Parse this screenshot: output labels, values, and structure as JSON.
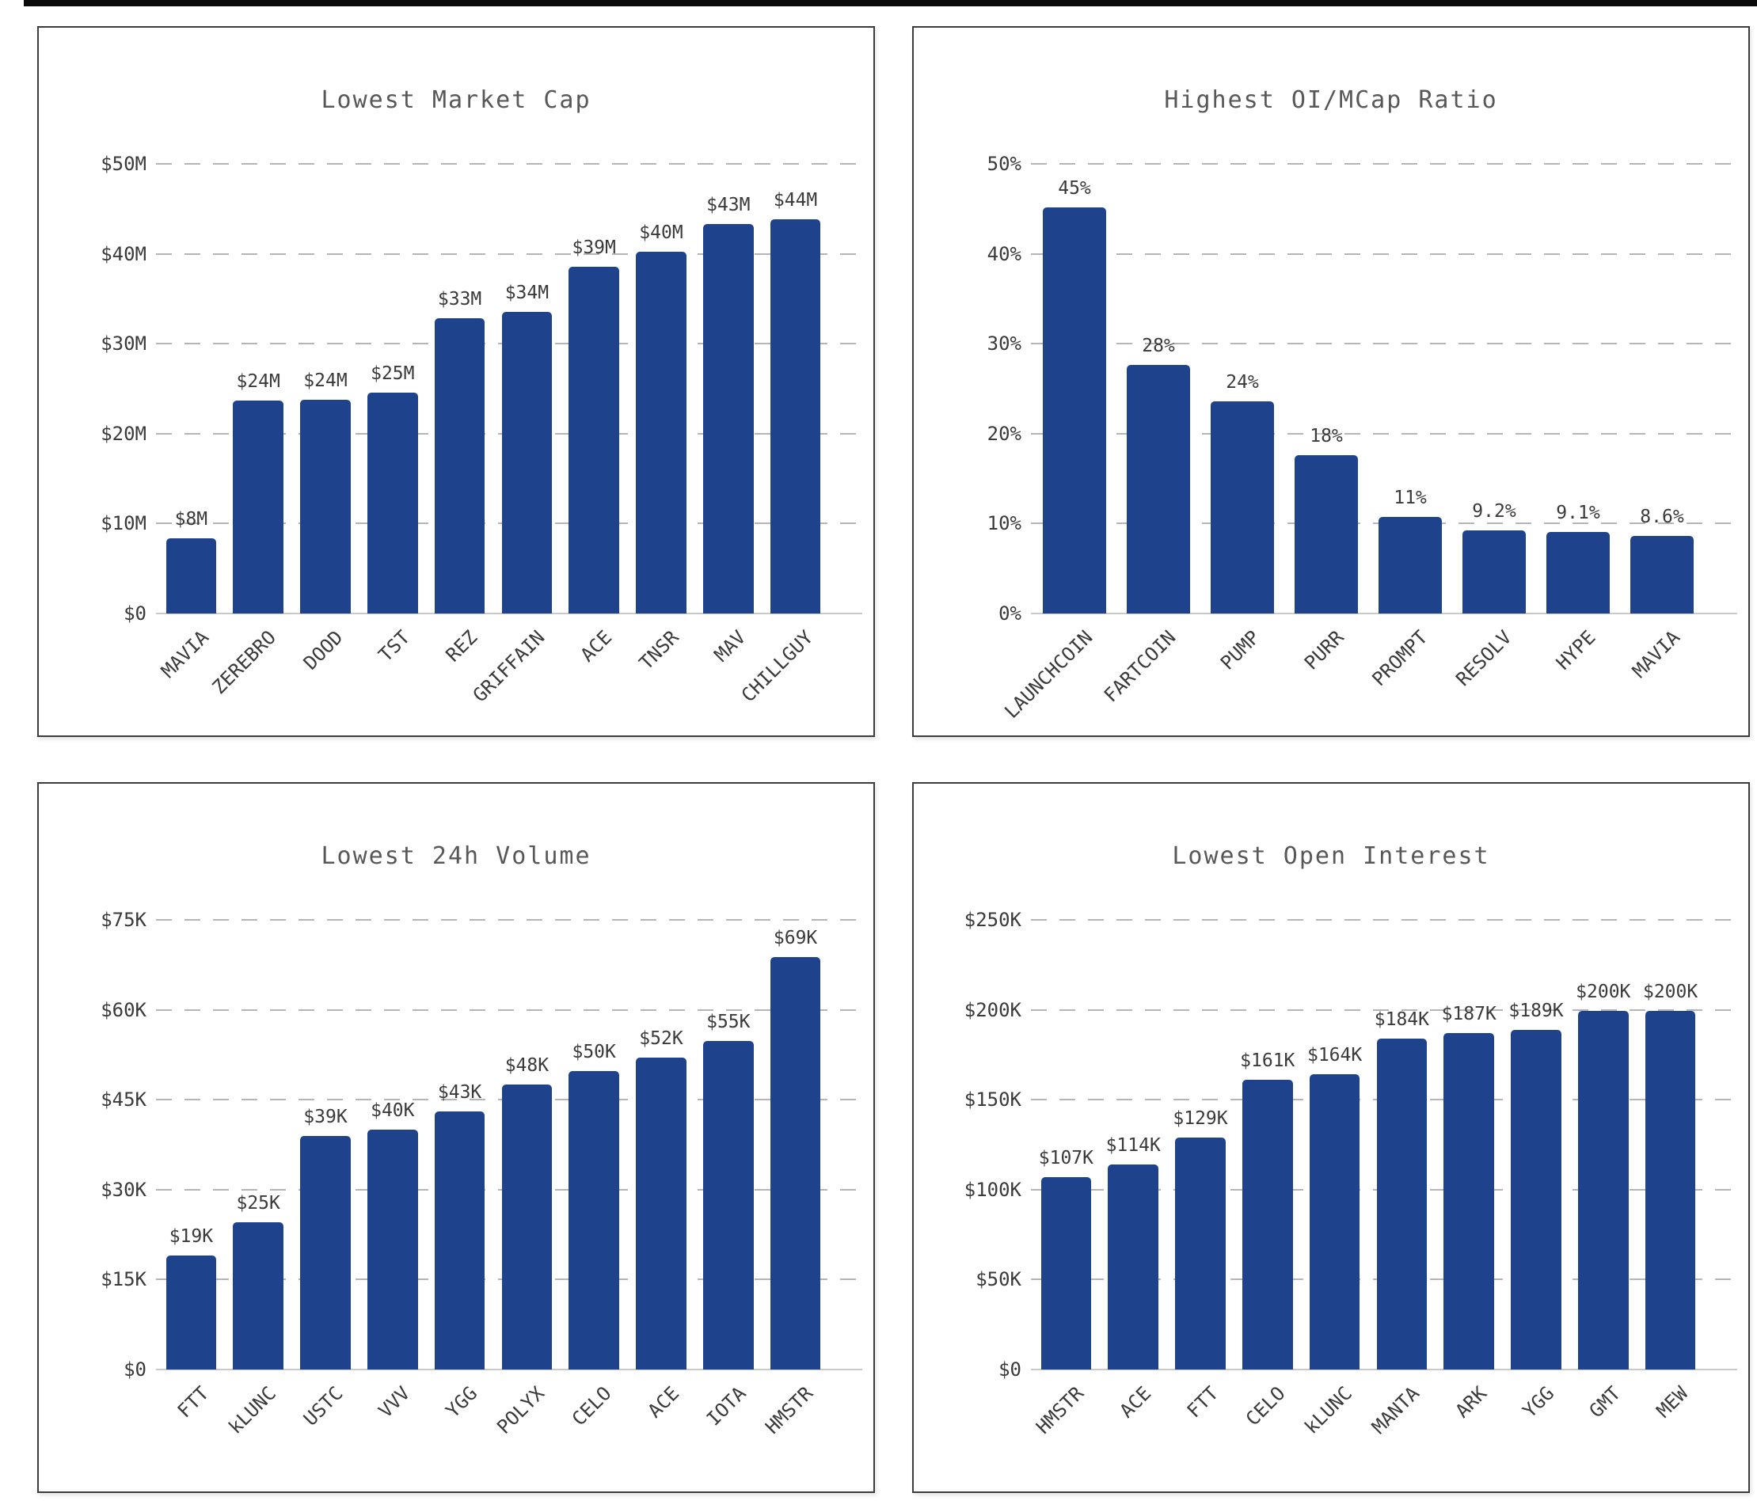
{
  "colors": {
    "bar": "#1e428c",
    "grid": "#b5b5b5",
    "axis_baseline": "#c9c9c9",
    "tick_text": "#3a3a3a",
    "value_text": "#3a3a3a",
    "title_text": "#585858",
    "panel_border": "#3c3c3c",
    "background": "#ffffff",
    "top_strip": "#0b0b0b"
  },
  "chart_data": [
    {
      "type": "bar",
      "title": "Lowest Market Cap",
      "categories": [
        "MAVIA",
        "ZEREBRO",
        "DOOD",
        "TST",
        "REZ",
        "GRIFFAIN",
        "ACE",
        "TNSR",
        "MAV",
        "CHILLGUY"
      ],
      "values": [
        8.4,
        23.7,
        23.8,
        24.6,
        32.8,
        33.5,
        38.6,
        40.2,
        43.3,
        43.8
      ],
      "value_labels": [
        "$8M",
        "$24M",
        "$24M",
        "$25M",
        "$33M",
        "$34M",
        "$39M",
        "$40M",
        "$43M",
        "$44M"
      ],
      "y_ticks": [
        "$0",
        "$10M",
        "$20M",
        "$30M",
        "$40M",
        "$50M"
      ],
      "y_tick_values": [
        0,
        10,
        20,
        30,
        40,
        50
      ],
      "ylim": [
        0,
        50
      ],
      "xlabel": "",
      "ylabel": "",
      "grid": "horizontal-dashed",
      "legend": "none"
    },
    {
      "type": "bar",
      "title": "Highest OI/MCap Ratio",
      "categories": [
        "LAUNCHCOIN",
        "FARTCOIN",
        "PUMP",
        "PURR",
        "PROMPT",
        "RESOLV",
        "HYPE",
        "MAVIA"
      ],
      "values": [
        45.2,
        27.6,
        23.6,
        17.6,
        10.7,
        9.2,
        9.1,
        8.6
      ],
      "value_labels": [
        "45%",
        "28%",
        "24%",
        "18%",
        "11%",
        "9.2%",
        "9.1%",
        "8.6%"
      ],
      "y_ticks": [
        "0%",
        "10%",
        "20%",
        "30%",
        "40%",
        "50%"
      ],
      "y_tick_values": [
        0,
        10,
        20,
        30,
        40,
        50
      ],
      "ylim": [
        0,
        50
      ],
      "xlabel": "",
      "ylabel": "",
      "grid": "horizontal-dashed",
      "legend": "none"
    },
    {
      "type": "bar",
      "title": "Lowest 24h Volume",
      "categories": [
        "FTT",
        "kLUNC",
        "USTC",
        "VVV",
        "YGG",
        "POLYX",
        "CELO",
        "ACE",
        "IOTA",
        "HMSTR"
      ],
      "values": [
        19,
        24.5,
        39,
        40,
        43,
        47.5,
        49.8,
        52,
        54.8,
        68.8
      ],
      "value_labels": [
        "$19K",
        "$25K",
        "$39K",
        "$40K",
        "$43K",
        "$48K",
        "$50K",
        "$52K",
        "$55K",
        "$69K"
      ],
      "y_ticks": [
        "$0",
        "$15K",
        "$30K",
        "$45K",
        "$60K",
        "$75K"
      ],
      "y_tick_values": [
        0,
        15,
        30,
        45,
        60,
        75
      ],
      "ylim": [
        0,
        75
      ],
      "xlabel": "",
      "ylabel": "",
      "grid": "horizontal-dashed",
      "legend": "none"
    },
    {
      "type": "bar",
      "title": "Lowest Open Interest",
      "categories": [
        "HMSTR",
        "ACE",
        "FTT",
        "CELO",
        "kLUNC",
        "MANTA",
        "ARK",
        "YGG",
        "GMT",
        "MEW"
      ],
      "values": [
        107,
        114,
        129,
        161,
        164,
        184,
        187,
        189,
        199.5,
        199.5
      ],
      "value_labels": [
        "$107K",
        "$114K",
        "$129K",
        "$161K",
        "$164K",
        "$184K",
        "$187K",
        "$189K",
        "$200K",
        "$200K"
      ],
      "y_ticks": [
        "$0",
        "$50K",
        "$100K",
        "$150K",
        "$200K",
        "$250K"
      ],
      "y_tick_values": [
        0,
        50,
        100,
        150,
        200,
        250
      ],
      "ylim": [
        0,
        250
      ],
      "xlabel": "",
      "ylabel": "",
      "grid": "horizontal-dashed",
      "legend": "none"
    }
  ]
}
